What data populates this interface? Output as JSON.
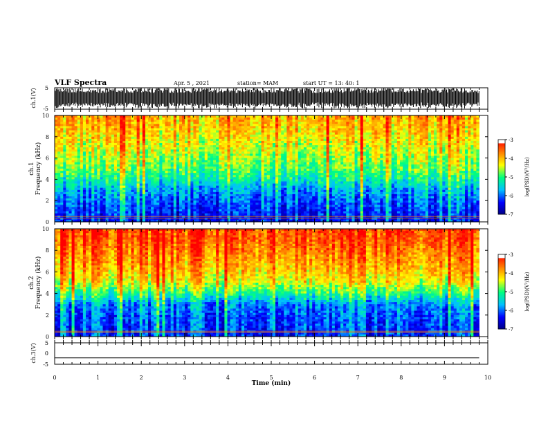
{
  "header": {
    "title": "VLF Spectra",
    "date": "Apr. 5  , 2021",
    "station": "station= MAM",
    "start": "start  UT  =   13: 40: 1"
  },
  "colorbar_ticks": [
    "-3",
    "-4",
    "-5",
    "-6",
    "-7"
  ],
  "colorbar_label": "log(PSD)(V²/Hz)",
  "colorscale": [
    "#000080",
    "#0000ff",
    "#00c0ff",
    "#00ff80",
    "#ffff00",
    "#ff8000",
    "#ff0000",
    "#ffffff"
  ],
  "chart_data": [
    {
      "type": "line",
      "name": "ch1-waveform",
      "ylabel": "ch.1(V)",
      "ylim": [
        -5,
        5
      ],
      "yticks": [
        "5",
        "-5"
      ],
      "xlim": [
        0,
        10
      ],
      "note_visible": "dense black bursts between about -5 and 5 V until 9.8 min"
    },
    {
      "type": "heatmap",
      "name": "ch1-spectrogram",
      "ylabel_line1": "ch.1",
      "ylabel_line2": "Frequency  (kHz)",
      "ylim": [
        0,
        10
      ],
      "yticks": [
        "0",
        "2",
        "4",
        "6",
        "8",
        "10"
      ],
      "xlim": [
        0,
        10
      ],
      "data_end_min": 9.8,
      "zlim": [
        -7,
        -3
      ],
      "freq_profile_khz": [
        0,
        1,
        2,
        3,
        4,
        5,
        6,
        7,
        8,
        9,
        10
      ],
      "psd_profile": [
        -6.4,
        -6.2,
        -6.0,
        -5.7,
        -5.2,
        -4.8,
        -4.6,
        -4.4,
        -4.2,
        -4.0,
        -3.9
      ]
    },
    {
      "type": "heatmap",
      "name": "ch2-spectrogram",
      "ylabel_line1": "ch.2",
      "ylabel_line2": "Frequency  (kHz)",
      "ylim": [
        0,
        10
      ],
      "yticks": [
        "0",
        "2",
        "4",
        "6",
        "8",
        "10"
      ],
      "xlim": [
        0,
        10
      ],
      "data_end_min": 9.8,
      "zlim": [
        -7,
        -3
      ],
      "freq_profile_khz": [
        0,
        1,
        2,
        3,
        4,
        5,
        6,
        7,
        8,
        9,
        10
      ],
      "psd_profile": [
        -6.2,
        -6.1,
        -6.0,
        -5.8,
        -5.0,
        -4.3,
        -4.0,
        -3.8,
        -3.6,
        -3.4,
        -3.3
      ]
    },
    {
      "type": "line",
      "name": "ch3-waveform",
      "ylabel": "ch.3(V)",
      "ylim": [
        -5,
        5
      ],
      "yticks": [
        "5",
        "0",
        "-5"
      ],
      "xlim": [
        0,
        10
      ],
      "x": [
        0,
        9.8
      ],
      "y": [
        -2,
        -2
      ]
    }
  ],
  "xaxis": {
    "label": "Time  (min)",
    "ticks": [
      "0",
      "1",
      "2",
      "3",
      "4",
      "5",
      "6",
      "7",
      "8",
      "9",
      "10"
    ]
  }
}
